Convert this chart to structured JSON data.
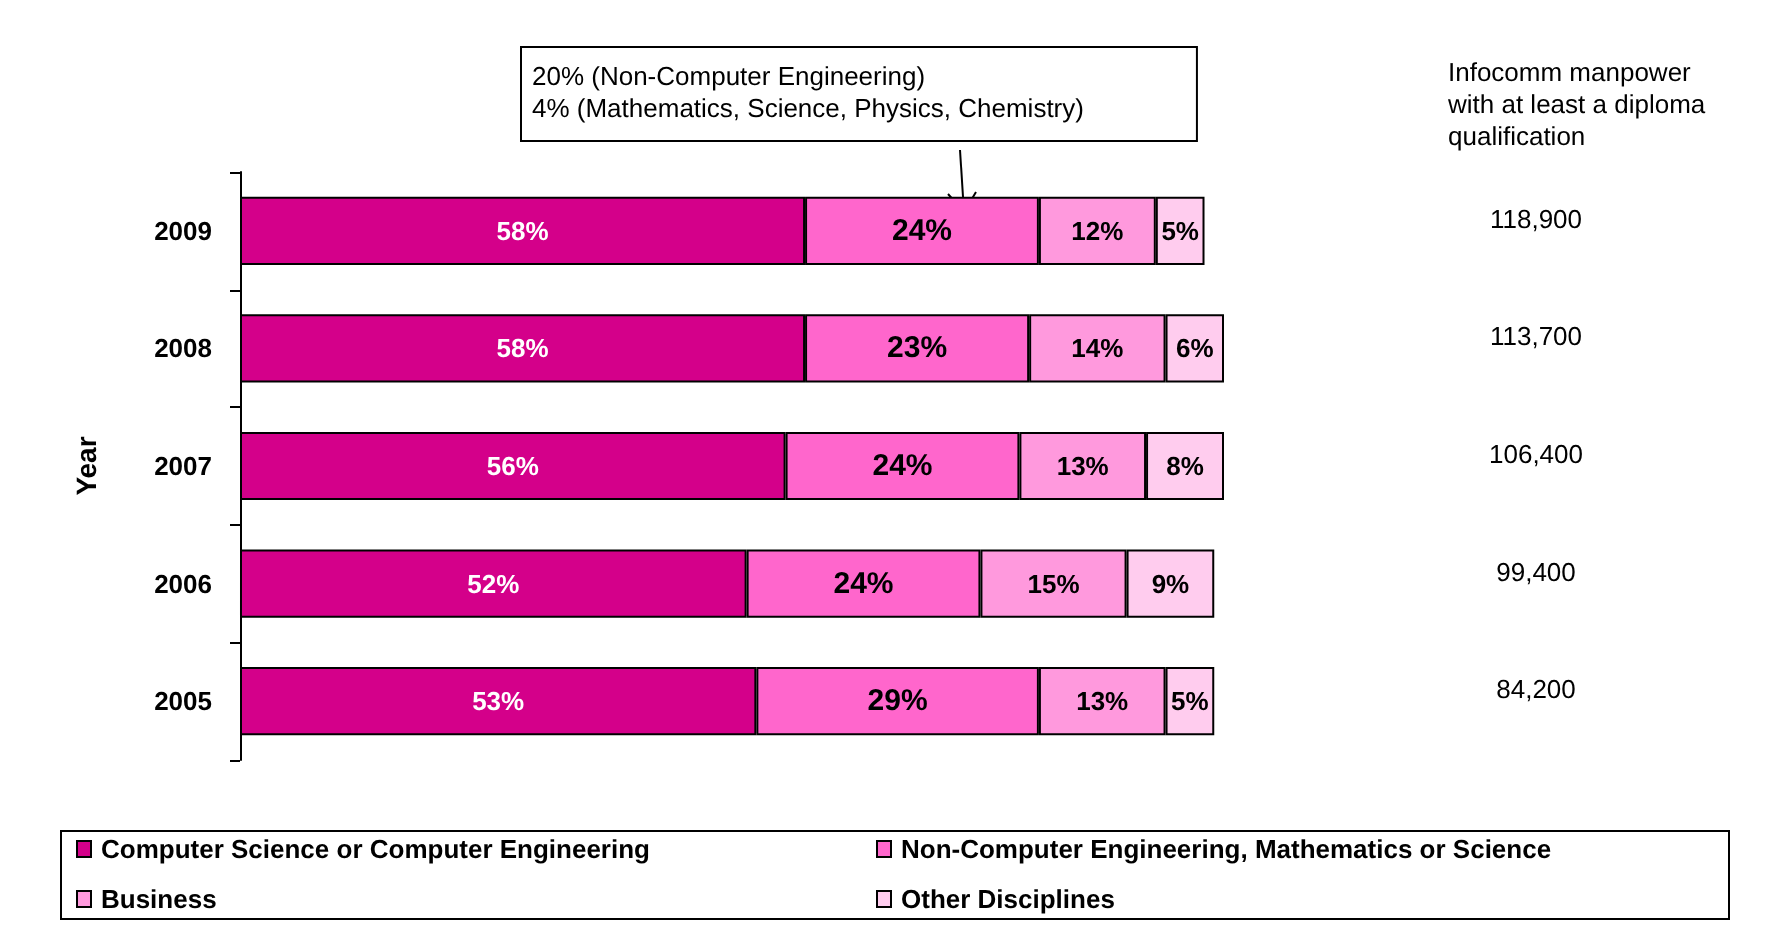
{
  "chart_data": {
    "type": "bar",
    "orientation": "horizontal",
    "stacked": true,
    "ylabel": "Year",
    "categories": [
      "2009",
      "2008",
      "2007",
      "2006",
      "2005"
    ],
    "series": [
      {
        "name": "Computer Science or Computer Engineering",
        "color": "#d4008a",
        "values": [
          58,
          58,
          56,
          52,
          53
        ],
        "value_labels": [
          "58%",
          "58%",
          "56%",
          "52%",
          "53%"
        ]
      },
      {
        "name": "Non-Computer Engineering, Mathematics or Science",
        "color": "#ff66cc",
        "values": [
          24,
          23,
          24,
          24,
          29
        ],
        "value_labels": [
          "24%",
          "23%",
          "24%",
          "24%",
          "29%"
        ]
      },
      {
        "name": "Business",
        "color": "#ff99dd",
        "values": [
          12,
          14,
          13,
          15,
          13
        ],
        "value_labels": [
          "12%",
          "14%",
          "13%",
          "15%",
          "13%"
        ]
      },
      {
        "name": "Other Disciplines",
        "color": "#ffccee",
        "values": [
          5,
          6,
          8,
          9,
          5
        ],
        "value_labels": [
          "5%",
          "6%",
          "8%",
          "9%",
          "5%"
        ]
      }
    ],
    "legend": "bottom",
    "grid": false,
    "annotations": [
      "20% (Non-Computer Engineering)\n4% (Mathematics, Science, Physics, Chemistry)",
      "Infocomm manpower\nwith at least a diploma\nqualification",
      "118,900",
      "113,700",
      "106,400",
      "99,400",
      "84,200"
    ]
  }
}
